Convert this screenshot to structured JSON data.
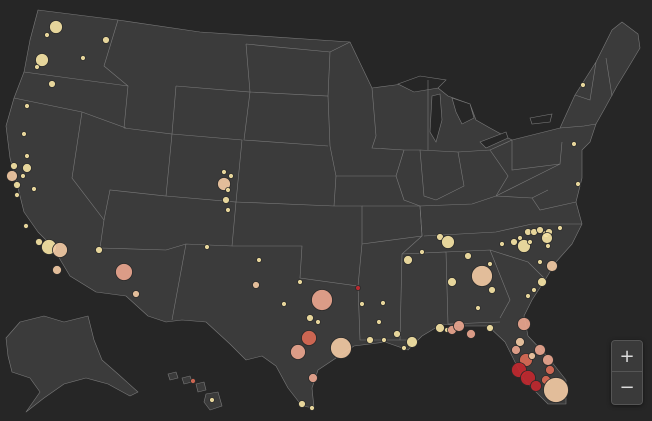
{
  "map": {
    "background_color": "#262626",
    "land_color": "#3b3b3b",
    "border_color": "#7a7a7a"
  },
  "controls": {
    "zoom_in_label": "+",
    "zoom_out_label": "−"
  },
  "legend": {
    "color_scale": [
      "#f5e3a4",
      "#f1c9a3",
      "#e9a58e",
      "#d96a55",
      "#c0282f"
    ]
  }
}
